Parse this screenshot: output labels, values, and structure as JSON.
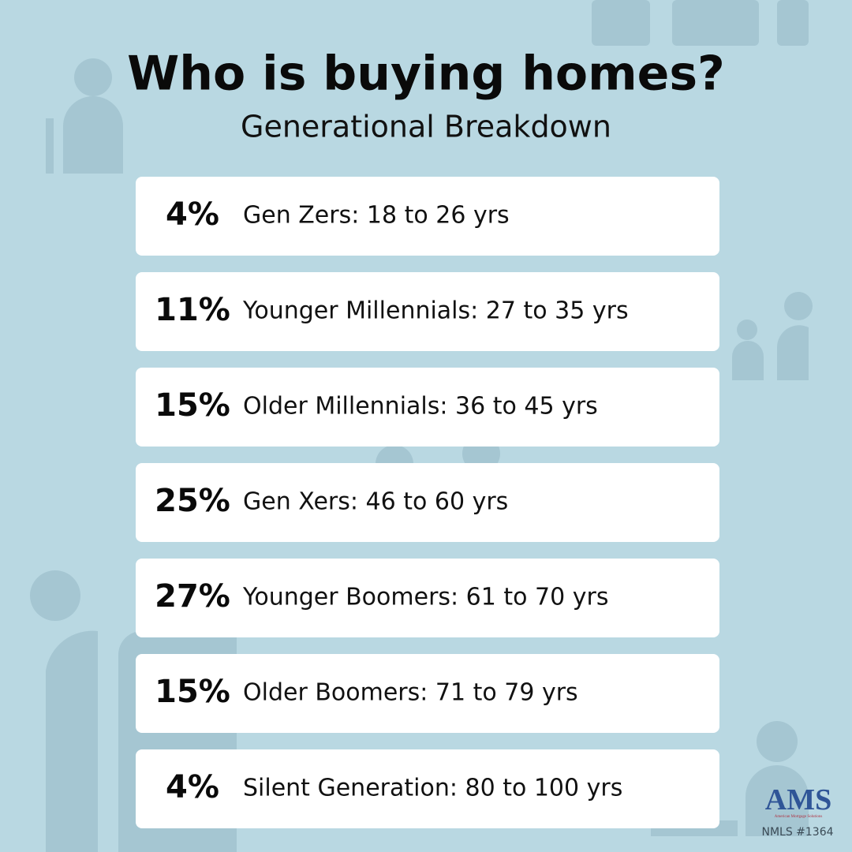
{
  "header": {
    "title": "Who is buying homes?",
    "subtitle": "Generational Breakdown"
  },
  "rows": [
    {
      "percent": "4%",
      "label": "Gen Zers: 18 to 26 yrs"
    },
    {
      "percent": "11%",
      "label": "Younger Millennials: 27 to 35 yrs"
    },
    {
      "percent": "15%",
      "label": "Older Millennials: 36 to 45 yrs"
    },
    {
      "percent": "25%",
      "label": "Gen Xers: 46 to 60 yrs"
    },
    {
      "percent": "27%",
      "label": "Younger Boomers: 61 to 70 yrs"
    },
    {
      "percent": "15%",
      "label": "Older Boomers: 71 to 79 yrs"
    },
    {
      "percent": "4%",
      "label": "Silent Generation: 80 to 100 yrs"
    }
  ],
  "footer": {
    "logo": "AMS",
    "logo_tagline": "American Mortgage Solutions",
    "nmls": "NMLS #1364"
  }
}
